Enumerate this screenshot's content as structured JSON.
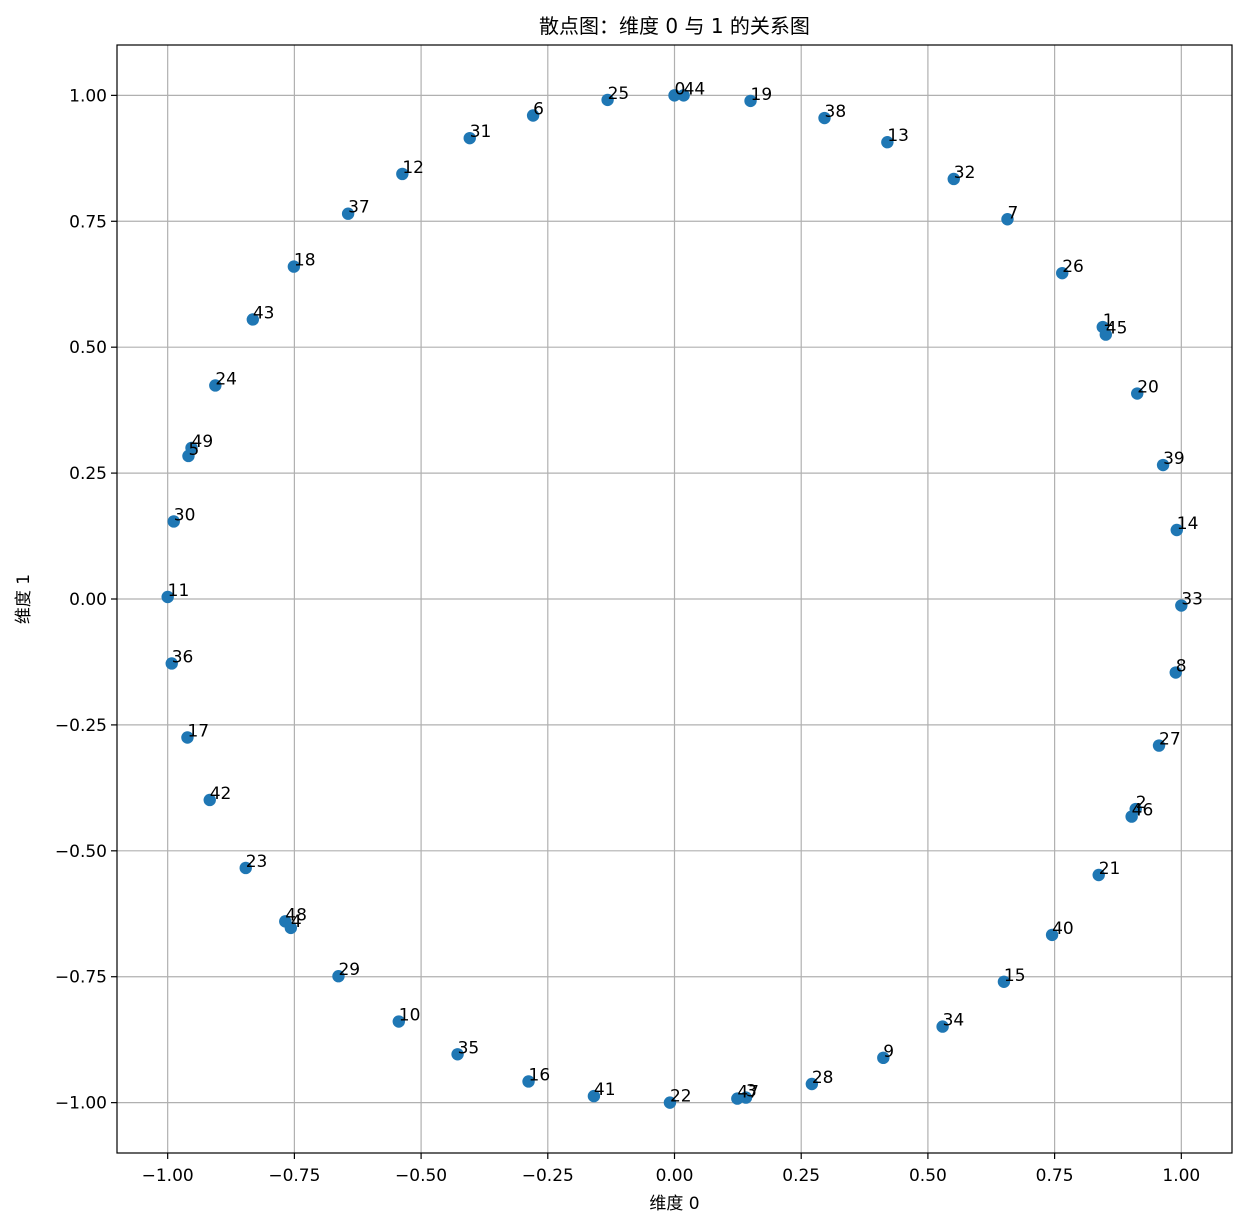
{
  "chart_data": {
    "type": "scatter",
    "title": "散点图：维度 0 与 1 的关系图",
    "xlabel": "维度 0",
    "ylabel": "维度 1",
    "xlim": [
      -1.1,
      1.1
    ],
    "ylim": [
      -1.1,
      1.1
    ],
    "grid": true,
    "xticks": [
      -1.0,
      -0.75,
      -0.5,
      -0.25,
      0.0,
      0.25,
      0.5,
      0.75,
      1.0
    ],
    "yticks": [
      -1.0,
      -0.75,
      -0.5,
      -0.25,
      0.0,
      0.25,
      0.5,
      0.75,
      1.0
    ],
    "xtick_labels": [
      "−1.00",
      "−0.75",
      "−0.50",
      "−0.25",
      "0.00",
      "0.25",
      "0.50",
      "0.75",
      "1.00"
    ],
    "ytick_labels": [
      "−1.00",
      "−0.75",
      "−0.50",
      "−0.25",
      "0.00",
      "0.25",
      "0.50",
      "0.75",
      "1.00"
    ],
    "marker_color": "#1f77b4",
    "points": [
      {
        "label": "0",
        "x": 0.0,
        "y": 1.0
      },
      {
        "label": "1",
        "x": 0.845,
        "y": 0.54
      },
      {
        "label": "2",
        "x": 0.91,
        "y": -0.417
      },
      {
        "label": "3",
        "x": 0.141,
        "y": -0.99
      },
      {
        "label": "4",
        "x": -0.757,
        "y": -0.653
      },
      {
        "label": "5",
        "x": -0.959,
        "y": 0.284
      },
      {
        "label": "6",
        "x": -0.279,
        "y": 0.96
      },
      {
        "label": "7",
        "x": 0.657,
        "y": 0.754
      },
      {
        "label": "8",
        "x": 0.989,
        "y": -0.146
      },
      {
        "label": "9",
        "x": 0.412,
        "y": -0.911
      },
      {
        "label": "10",
        "x": -0.544,
        "y": -0.839
      },
      {
        "label": "11",
        "x": -1.0,
        "y": 0.004
      },
      {
        "label": "12",
        "x": -0.537,
        "y": 0.844
      },
      {
        "label": "13",
        "x": 0.42,
        "y": 0.907
      },
      {
        "label": "14",
        "x": 0.991,
        "y": 0.137
      },
      {
        "label": "15",
        "x": 0.65,
        "y": -0.76
      },
      {
        "label": "16",
        "x": -0.288,
        "y": -0.958
      },
      {
        "label": "17",
        "x": -0.961,
        "y": -0.275
      },
      {
        "label": "18",
        "x": -0.751,
        "y": 0.66
      },
      {
        "label": "19",
        "x": 0.15,
        "y": 0.989
      },
      {
        "label": "20",
        "x": 0.913,
        "y": 0.408
      },
      {
        "label": "21",
        "x": 0.837,
        "y": -0.548
      },
      {
        "label": "22",
        "x": -0.009,
        "y": -1.0
      },
      {
        "label": "23",
        "x": -0.846,
        "y": -0.534
      },
      {
        "label": "24",
        "x": -0.906,
        "y": 0.424
      },
      {
        "label": "25",
        "x": -0.132,
        "y": 0.991
      },
      {
        "label": "26",
        "x": 0.765,
        "y": 0.647
      },
      {
        "label": "27",
        "x": 0.956,
        "y": -0.291
      },
      {
        "label": "28",
        "x": 0.271,
        "y": -0.963
      },
      {
        "label": "29",
        "x": -0.663,
        "y": -0.749
      },
      {
        "label": "30",
        "x": -0.988,
        "y": 0.154
      },
      {
        "label": "31",
        "x": -0.404,
        "y": 0.915
      },
      {
        "label": "32",
        "x": 0.551,
        "y": 0.834
      },
      {
        "label": "33",
        "x": 1.0,
        "y": -0.013
      },
      {
        "label": "34",
        "x": 0.529,
        "y": -0.849
      },
      {
        "label": "35",
        "x": -0.428,
        "y": -0.904
      },
      {
        "label": "36",
        "x": -0.992,
        "y": -0.128
      },
      {
        "label": "37",
        "x": -0.644,
        "y": 0.765
      },
      {
        "label": "38",
        "x": 0.296,
        "y": 0.955
      },
      {
        "label": "39",
        "x": 0.964,
        "y": 0.266
      },
      {
        "label": "40",
        "x": 0.745,
        "y": -0.667
      },
      {
        "label": "41",
        "x": -0.159,
        "y": -0.987
      },
      {
        "label": "42",
        "x": -0.917,
        "y": -0.399
      },
      {
        "label": "43",
        "x": -0.832,
        "y": 0.555
      },
      {
        "label": "44",
        "x": 0.018,
        "y": 1.0
      },
      {
        "label": "45",
        "x": 0.851,
        "y": 0.525
      },
      {
        "label": "46",
        "x": 0.902,
        "y": -0.432
      },
      {
        "label": "47",
        "x": 0.124,
        "y": -0.992
      },
      {
        "label": "48",
        "x": -0.768,
        "y": -0.64
      },
      {
        "label": "49",
        "x": -0.953,
        "y": 0.3
      }
    ]
  }
}
